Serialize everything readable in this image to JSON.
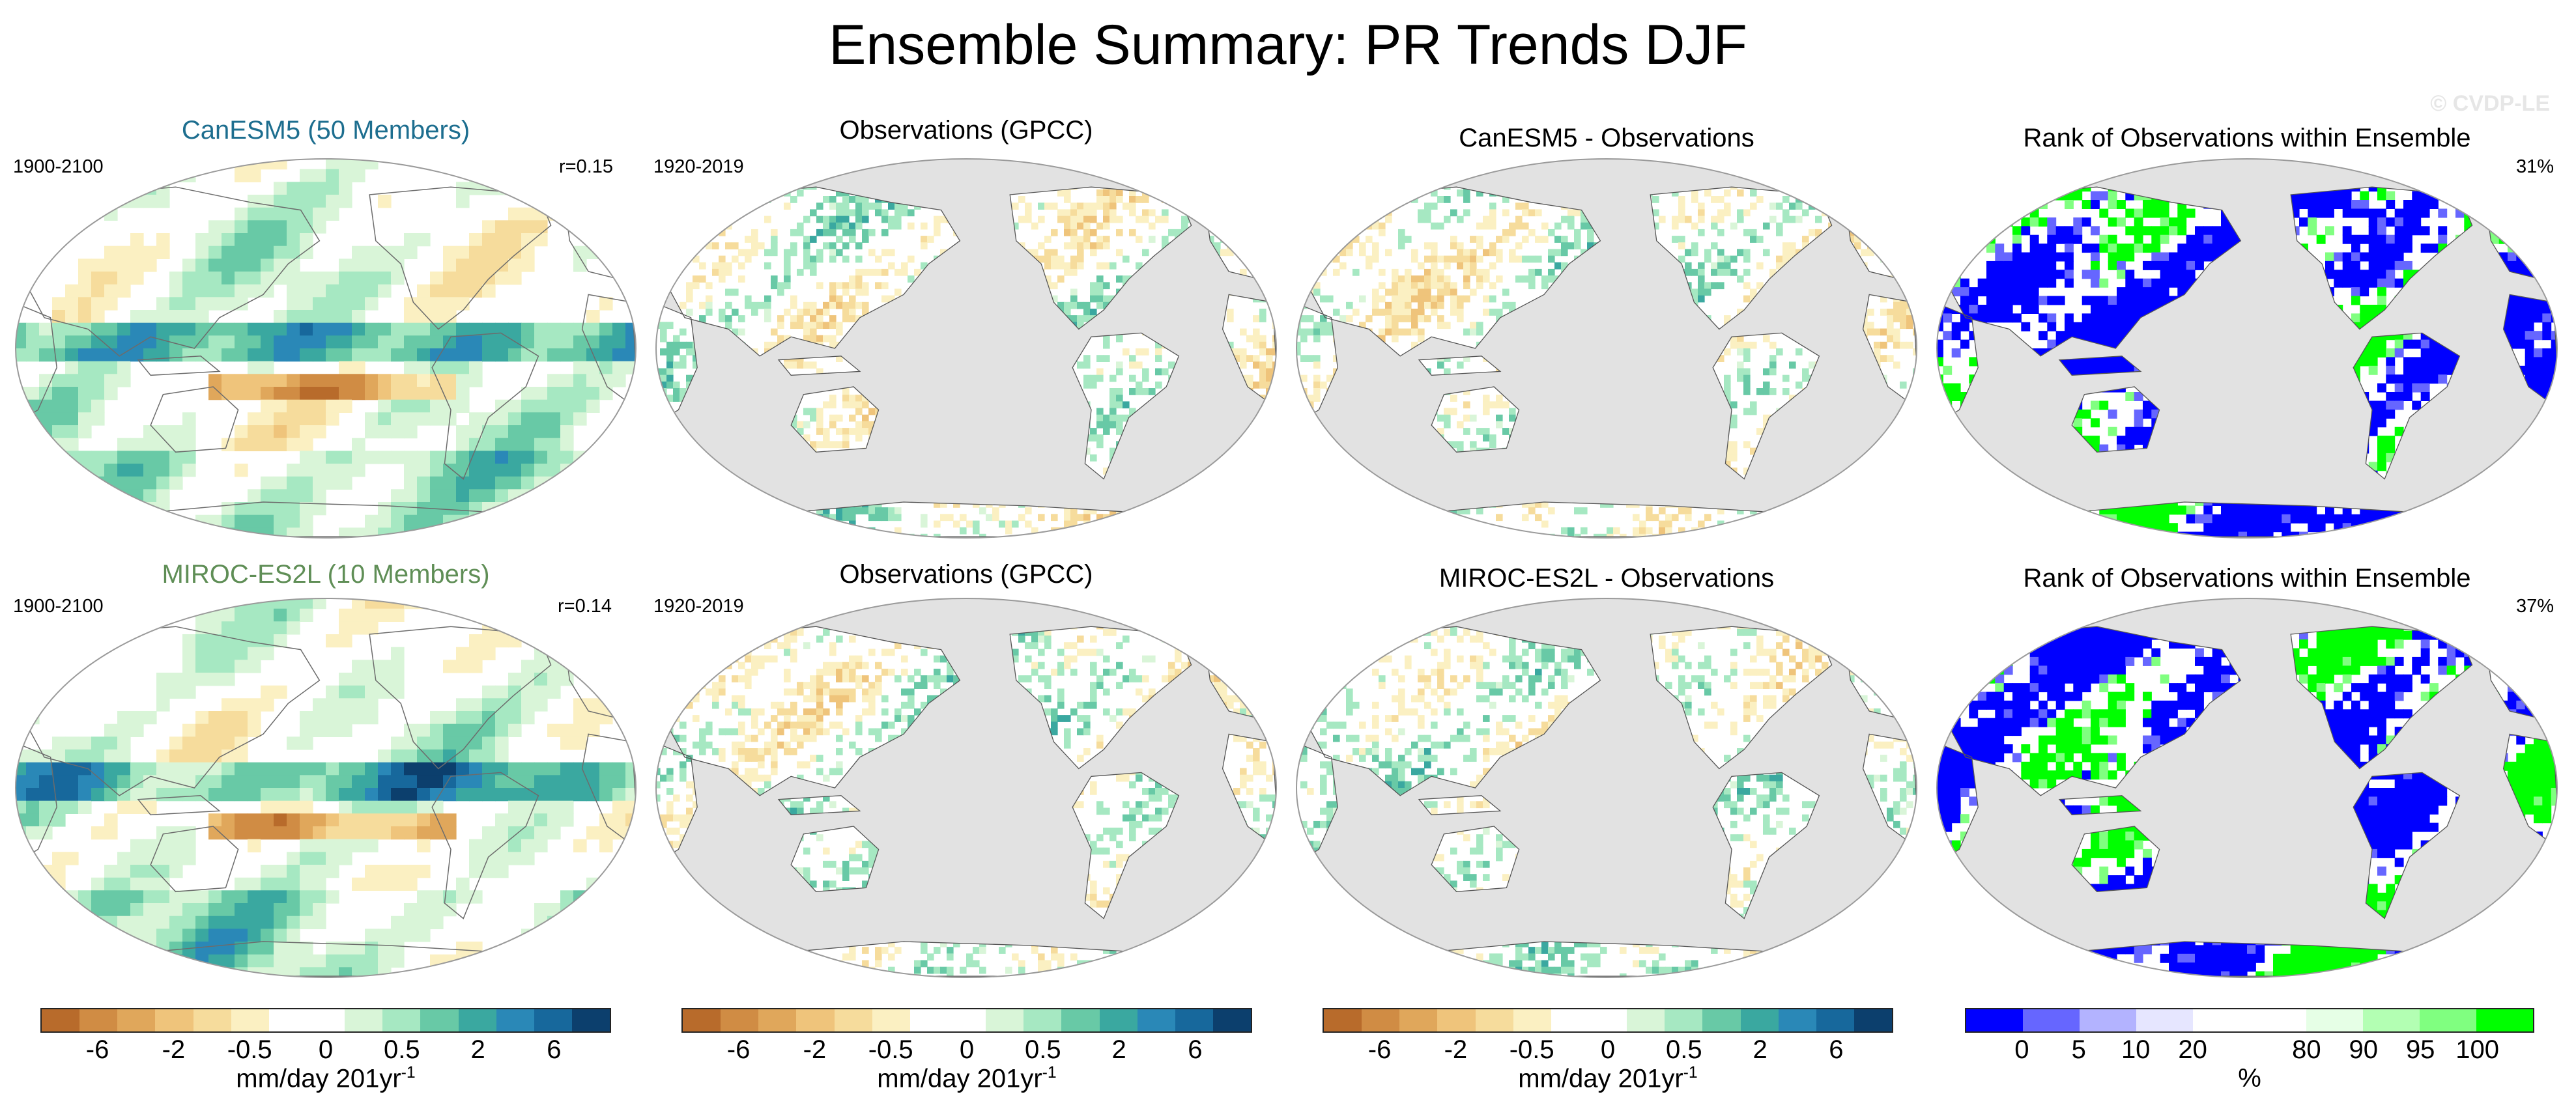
{
  "title": "Ensemble Summary: PR Trends DJF",
  "watermark": "© CVDP-LE",
  "colors": {
    "ocean_gray": "#e2e2e2",
    "model1_title": "#1d6e8f",
    "model2_title": "#5f8e56"
  },
  "rows": [
    {
      "panels": [
        {
          "title": "CanESM5 (50 Members)",
          "left": "1900-2100",
          "right": "r=0.15",
          "kind": "model"
        },
        {
          "title": "Observations (GPCC)",
          "left": "1920-2019",
          "right": "",
          "kind": "obs"
        },
        {
          "title": "CanESM5 - Observations",
          "left": "",
          "right": "",
          "kind": "diff"
        },
        {
          "title": "Rank of Observations within Ensemble",
          "left": "",
          "right": "31%",
          "kind": "rank"
        }
      ]
    },
    {
      "panels": [
        {
          "title": "MIROC-ES2L (10 Members)",
          "left": "1900-2100",
          "right": "r=0.14",
          "kind": "model"
        },
        {
          "title": "Observations (GPCC)",
          "left": "1920-2019",
          "right": "",
          "kind": "obs"
        },
        {
          "title": "MIROC-ES2L - Observations",
          "left": "",
          "right": "",
          "kind": "diff"
        },
        {
          "title": "Rank of Observations within Ensemble",
          "left": "",
          "right": "37%",
          "kind": "rank"
        }
      ]
    }
  ],
  "trend_colorbar": {
    "colors": [
      "#b86b2b",
      "#d08c44",
      "#e0a75b",
      "#efc47b",
      "#f6dc9c",
      "#fbf0c2",
      "#ffffff",
      "#ffffff",
      "#d9f5d8",
      "#a6e8c2",
      "#68c9a6",
      "#3aa8a0",
      "#2a88b7",
      "#17689c",
      "#0c3f6d"
    ],
    "ticks": [
      "-6",
      "-2",
      "-0.5",
      "0",
      "0.5",
      "2",
      "6"
    ],
    "label": "mm/day 201yr",
    "label_sup": "-1"
  },
  "rank_colorbar": {
    "colors": [
      "#0000ff",
      "#6666ff",
      "#b3b3ff",
      "#e6e6ff",
      "#ffffff",
      "#ffffff",
      "#e6ffe6",
      "#b3ffb3",
      "#80ff80",
      "#00ff00"
    ],
    "ticks": [
      "0",
      "5",
      "10",
      "20",
      "80",
      "90",
      "95",
      "100"
    ],
    "label": "%"
  }
}
